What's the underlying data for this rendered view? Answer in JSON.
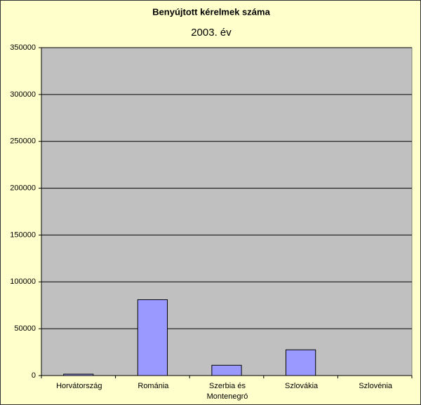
{
  "chart_data": {
    "type": "bar",
    "title": "Benyújtott kérelmek száma",
    "subtitle": "2003. év",
    "categories": [
      "Horvátország",
      "Románia",
      "Szerbia és Montenegró",
      "Szlovákia",
      "Szlovénia"
    ],
    "values": [
      1500,
      81000,
      11000,
      27500,
      0
    ],
    "color": "#9999ff",
    "ylim": [
      0,
      350000
    ],
    "yticks": [
      0,
      50000,
      100000,
      150000,
      200000,
      250000,
      300000,
      350000
    ],
    "grid": true
  }
}
